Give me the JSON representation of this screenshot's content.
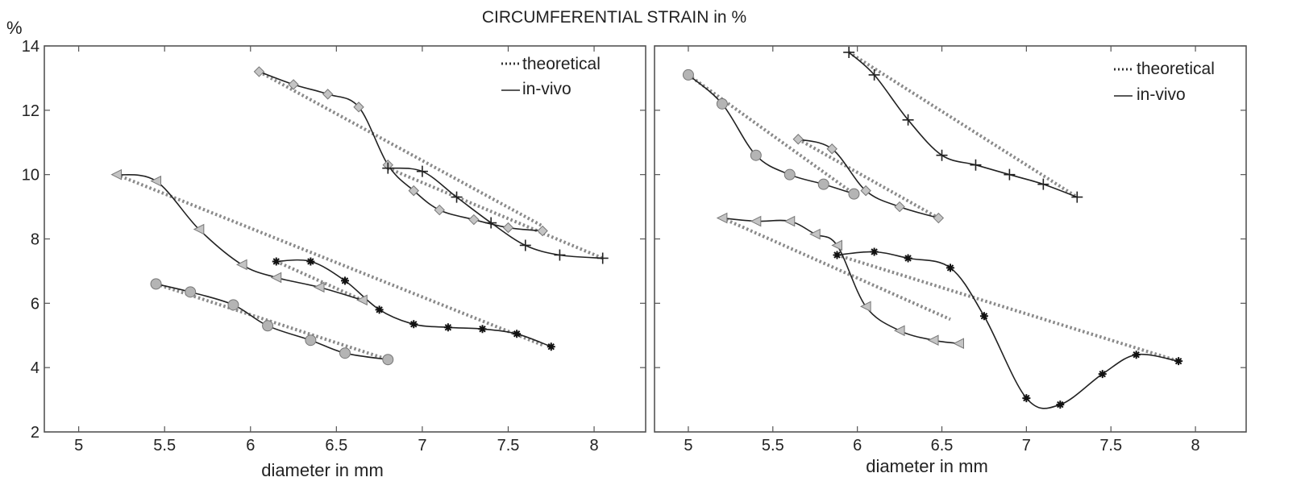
{
  "page": {
    "title": "CIRCUMFERENTIAL STRAIN in %",
    "y_unit": "%"
  },
  "chart_data": [
    {
      "type": "line",
      "xlabel": "diameter in mm",
      "ylabel": "%",
      "xlim": [
        4.8,
        8.3
      ],
      "ylim": [
        2,
        14
      ],
      "xticks": [
        "5",
        "5.5",
        "6",
        "6.5",
        "7",
        "7.5",
        "8"
      ],
      "xtick_values": [
        5,
        5.5,
        6,
        6.5,
        7,
        7.5,
        8
      ],
      "yticks": [
        "2",
        "4",
        "6",
        "8",
        "10",
        "12",
        "14"
      ],
      "ytick_values": [
        2,
        4,
        6,
        8,
        10,
        12,
        14
      ],
      "grid": false,
      "legend": {
        "position": "top-right",
        "entries": [
          "theoretical",
          "in-vivo"
        ],
        "theoretical_glyph": "....",
        "invivo_glyph": "—"
      },
      "series": [
        {
          "marker": "diamond",
          "invivo": {
            "x": [
              6.05,
              6.25,
              6.45,
              6.63,
              6.8,
              6.95,
              7.1,
              7.3,
              7.5,
              7.7
            ],
            "y": [
              13.2,
              12.8,
              12.5,
              12.1,
              10.3,
              9.5,
              8.9,
              8.6,
              8.35,
              8.25
            ]
          },
          "theoretical": {
            "x": [
              6.05,
              7.7
            ],
            "y": [
              13.2,
              8.4
            ]
          }
        },
        {
          "marker": "plus",
          "invivo": {
            "x": [
              6.8,
              7.0,
              7.2,
              7.4,
              7.6,
              7.8,
              8.05
            ],
            "y": [
              10.2,
              10.1,
              9.3,
              8.5,
              7.8,
              7.5,
              7.4
            ]
          },
          "theoretical": {
            "x": [
              6.8,
              8.05
            ],
            "y": [
              10.2,
              7.4
            ]
          }
        },
        {
          "marker": "triangle-left",
          "invivo": {
            "x": [
              5.22,
              5.45,
              5.7,
              5.95,
              6.15,
              6.4,
              6.65
            ],
            "y": [
              10.0,
              9.8,
              8.3,
              7.2,
              6.8,
              6.5,
              6.1
            ]
          },
          "theoretical": {
            "x": [
              5.22,
              7.7
            ],
            "y": [
              10.0,
              4.7
            ]
          }
        },
        {
          "marker": "star",
          "invivo": {
            "x": [
              6.15,
              6.35,
              6.55,
              6.75,
              6.95,
              7.15,
              7.35,
              7.55,
              7.75
            ],
            "y": [
              7.3,
              7.3,
              6.7,
              5.8,
              5.35,
              5.25,
              5.2,
              5.05,
              4.65
            ]
          },
          "theoretical": {
            "x": [
              6.15,
              6.65
            ],
            "y": [
              7.3,
              6.1
            ]
          }
        },
        {
          "marker": "circle",
          "invivo": {
            "x": [
              5.45,
              5.65,
              5.9,
              6.1,
              6.35,
              6.55,
              6.8
            ],
            "y": [
              6.6,
              6.35,
              5.95,
              5.3,
              4.85,
              4.45,
              4.25
            ]
          },
          "theoretical": {
            "x": [
              5.45,
              6.8
            ],
            "y": [
              6.6,
              4.25
            ]
          }
        }
      ]
    },
    {
      "type": "line",
      "xlabel": "diameter in mm",
      "ylabel": "",
      "xlim": [
        4.8,
        8.3
      ],
      "ylim": [
        2,
        14
      ],
      "xticks": [
        "5",
        "5.5",
        "6",
        "6.5",
        "7",
        "7.5",
        "8"
      ],
      "xtick_values": [
        5,
        5.5,
        6,
        6.5,
        7,
        7.5,
        8
      ],
      "yticks": [
        "",
        "",
        "",
        "",
        "",
        "",
        ""
      ],
      "ytick_values": [
        2,
        4,
        6,
        8,
        10,
        12,
        14
      ],
      "grid": false,
      "legend": {
        "position": "top-right",
        "entries": [
          "theoretical",
          "in-vivo"
        ],
        "theoretical_glyph": "....",
        "invivo_glyph": "—"
      },
      "series": [
        {
          "marker": "circle",
          "invivo": {
            "x": [
              5.0,
              5.2,
              5.4,
              5.6,
              5.8,
              5.98
            ],
            "y": [
              13.1,
              12.2,
              10.6,
              10.0,
              9.7,
              9.4
            ]
          },
          "theoretical": {
            "x": [
              5.0,
              5.98
            ],
            "y": [
              13.1,
              9.4
            ]
          }
        },
        {
          "marker": "plus",
          "invivo": {
            "x": [
              5.95,
              6.1,
              6.3,
              6.5,
              6.7,
              6.9,
              7.1,
              7.3
            ],
            "y": [
              13.8,
              13.1,
              11.7,
              10.6,
              10.3,
              10.0,
              9.7,
              9.3
            ]
          },
          "theoretical": {
            "x": [
              5.95,
              7.3
            ],
            "y": [
              13.8,
              9.3
            ]
          }
        },
        {
          "marker": "diamond",
          "invivo": {
            "x": [
              5.65,
              5.85,
              6.05,
              6.25,
              6.48
            ],
            "y": [
              11.1,
              10.8,
              9.5,
              9.0,
              8.65
            ]
          },
          "theoretical": {
            "x": [
              5.65,
              6.48
            ],
            "y": [
              11.1,
              8.65
            ]
          }
        },
        {
          "marker": "star",
          "invivo": {
            "x": [
              5.88,
              6.1,
              6.3,
              6.55,
              6.75,
              7.0,
              7.2,
              7.45,
              7.65,
              7.9
            ],
            "y": [
              7.5,
              7.6,
              7.4,
              7.1,
              5.6,
              3.05,
              2.85,
              3.8,
              4.4,
              4.2
            ]
          },
          "theoretical": {
            "x": [
              5.88,
              7.9
            ],
            "y": [
              7.5,
              4.2
            ]
          }
        },
        {
          "marker": "triangle-left",
          "invivo": {
            "x": [
              5.2,
              5.4,
              5.6,
              5.75,
              5.88,
              6.05,
              6.25,
              6.45,
              6.6
            ],
            "y": [
              8.65,
              8.55,
              8.55,
              8.15,
              7.8,
              5.9,
              5.15,
              4.85,
              4.75
            ]
          },
          "theoretical": {
            "x": [
              5.2,
              6.55
            ],
            "y": [
              8.65,
              5.5
            ]
          }
        }
      ]
    }
  ]
}
